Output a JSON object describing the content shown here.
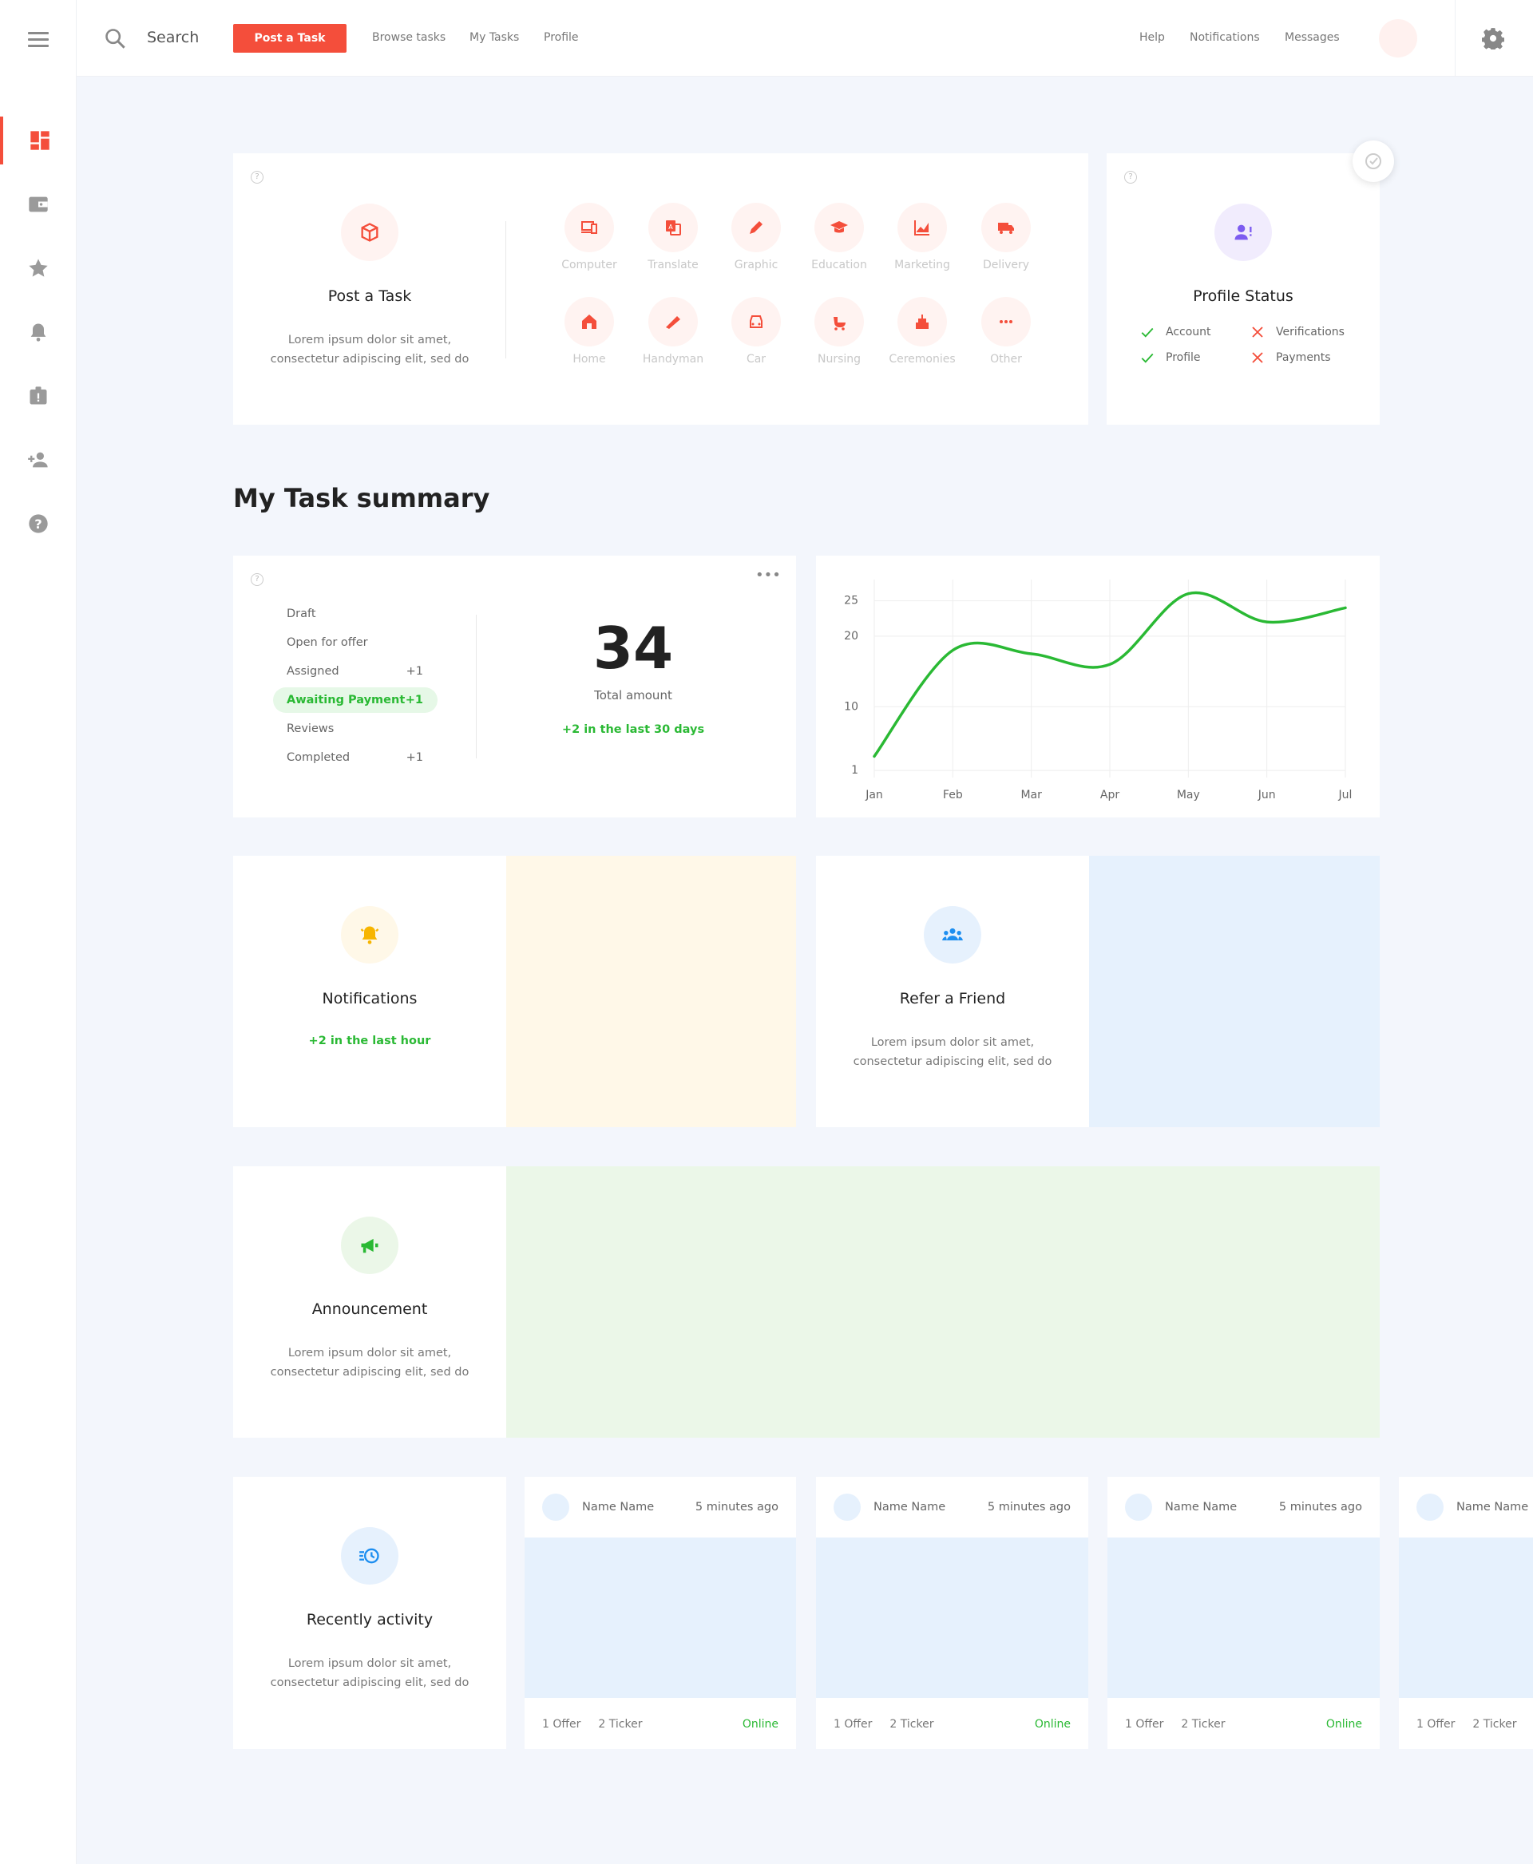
{
  "topbar": {
    "search_label": "Search",
    "post_task": "Post a Task",
    "links": [
      "Browse tasks",
      "My Tasks",
      "Profile"
    ],
    "right_links": [
      "Help",
      "Notifications",
      "Messages"
    ]
  },
  "sidebar": {
    "icons": [
      "dashboard-icon",
      "wallet-icon",
      "star-icon",
      "bell-icon",
      "badge-icon",
      "add-user-icon",
      "help-icon"
    ]
  },
  "post_task_card": {
    "title": "Post a Task",
    "desc_line1": "Lorem ipsum dolor sit amet,",
    "desc_line2": "consectetur adipiscing elit, sed do"
  },
  "categories": [
    "Computer",
    "Translate",
    "Graphic",
    "Education",
    "Marketing",
    "Delivery",
    "Home",
    "Handyman",
    "Car",
    "Nursing",
    "Ceremonies",
    "Other"
  ],
  "profile_status": {
    "title": "Profile Status",
    "items": [
      {
        "label": "Account",
        "done": true
      },
      {
        "label": "Verifications",
        "done": false
      },
      {
        "label": "Profile",
        "done": true
      },
      {
        "label": "Payments",
        "done": false
      }
    ]
  },
  "summary": {
    "heading": "My Task summary",
    "rows": [
      {
        "label": "Draft",
        "count": ""
      },
      {
        "label": "Open for offer",
        "count": ""
      },
      {
        "label": "Assigned",
        "count": "+1"
      },
      {
        "label": "Awaiting Payment",
        "count": "+1"
      },
      {
        "label": "Reviews",
        "count": ""
      },
      {
        "label": "Completed",
        "count": "+1"
      }
    ],
    "total": "34",
    "total_label": "Total amount",
    "trend": "+2 in the last 30 days"
  },
  "chart_data": {
    "type": "line",
    "x": [
      "Jan",
      "Feb",
      "Mar",
      "Apr",
      "May",
      "Jun",
      "Jul"
    ],
    "y_ticks": [
      1,
      10,
      20,
      25
    ],
    "series": [
      {
        "values": [
          3,
          18,
          17.5,
          16,
          26,
          22,
          24
        ]
      }
    ],
    "color": "#2ab934"
  },
  "notifications_card": {
    "title": "Notifications",
    "trend": "+2 in the last hour"
  },
  "refer_card": {
    "title": "Refer a Friend",
    "desc_line1": "Lorem ipsum dolor sit amet,",
    "desc_line2": "consectetur adipiscing elit, sed do"
  },
  "announcement_card": {
    "title": "Announcement",
    "desc_line1": "Lorem ipsum dolor sit amet,",
    "desc_line2": "consectetur adipiscing elit, sed do"
  },
  "recent_card": {
    "title": "Recently activity",
    "desc_line1": "Lorem ipsum dolor sit amet,",
    "desc_line2": "consectetur adipiscing elit, sed do"
  },
  "feed": [
    {
      "name": "Name Name",
      "time": "5 minutes ago",
      "offers": "1 Offer",
      "tickers": "2 Ticker",
      "status": "Online"
    },
    {
      "name": "Name Name",
      "time": "5 minutes ago",
      "offers": "1 Offer",
      "tickers": "2 Ticker",
      "status": "Online"
    },
    {
      "name": "Name Name",
      "time": "5 minutes ago",
      "offers": "1 Offer",
      "tickers": "2 Ticker",
      "status": "Online"
    },
    {
      "name": "Name Name",
      "time": "",
      "offers": "1 Offer",
      "tickers": "2 Ticker",
      "status": ""
    }
  ],
  "colors": {
    "accent": "#f44e3b",
    "green": "#2ab934",
    "notif_panel": "#fff8e8",
    "refer_panel": "#e6f1fd",
    "announce_panel": "#ebf7e8"
  }
}
